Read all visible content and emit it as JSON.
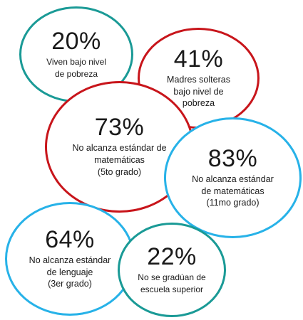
{
  "bubbles": [
    {
      "id": "b-20",
      "name": "bubble-poverty",
      "percent": "20%",
      "lines": [
        "Viven bajo nivel",
        "de pobreza"
      ],
      "color": "#1a9a96"
    },
    {
      "id": "b-41",
      "name": "bubble-single-mothers",
      "percent": "41%",
      "lines": [
        "Madres solteras",
        "bajo nivel de",
        "pobreza"
      ],
      "color": "#c8151b"
    },
    {
      "id": "b-73",
      "name": "bubble-math-5th-grade",
      "percent": "73%",
      "lines": [
        "No alcanza estándar de",
        "matemáticas",
        "(5to grado)"
      ],
      "color": "#c8151b"
    },
    {
      "id": "b-83",
      "name": "bubble-math-11th-grade",
      "percent": "83%",
      "lines": [
        "No alcanza estándar",
        "de matemáticas",
        "(11mo grado)"
      ],
      "color": "#27b2e8"
    },
    {
      "id": "b-64",
      "name": "bubble-language-3rd-grade",
      "percent": "64%",
      "lines": [
        "No alcanza estándar",
        "de lenguaje",
        "(3er grado)"
      ],
      "color": "#27b2e8"
    },
    {
      "id": "b-22",
      "name": "bubble-high-school-dropout",
      "percent": "22%",
      "lines": [
        "No se gradúan de",
        "escuela superior"
      ],
      "color": "#1a9a96"
    }
  ]
}
